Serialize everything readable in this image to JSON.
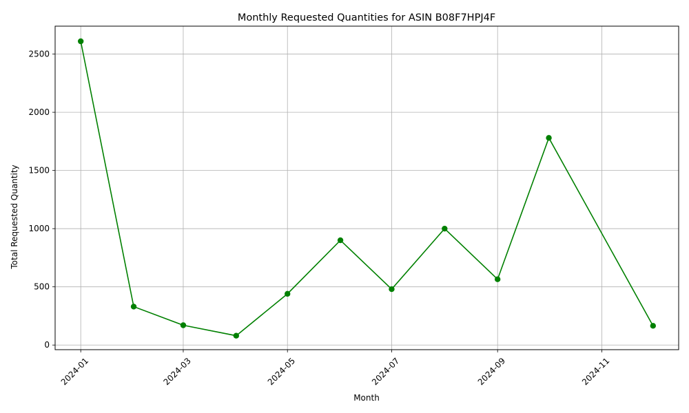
{
  "chart_data": {
    "type": "line",
    "title": "Monthly Requested Quantities for ASIN B08F7HPJ4F",
    "xlabel": "Month",
    "ylabel": "Total Requested Quantity",
    "x": [
      "2024-01-01",
      "2024-02-01",
      "2024-03-01",
      "2024-04-01",
      "2024-05-01",
      "2024-06-01",
      "2024-07-01",
      "2024-08-01",
      "2024-09-01",
      "2024-10-01",
      "2024-12-01"
    ],
    "values": [
      2610,
      330,
      170,
      80,
      440,
      900,
      480,
      1000,
      565,
      1780,
      165
    ],
    "xticks": [
      "2024-01",
      "2024-03",
      "2024-05",
      "2024-07",
      "2024-09",
      "2024-11"
    ],
    "xtick_values": [
      "2024-01-01",
      "2024-03-01",
      "2024-05-01",
      "2024-07-01",
      "2024-09-01",
      "2024-11-01"
    ],
    "yticks": [
      0,
      500,
      1000,
      1500,
      2000,
      2500
    ],
    "xlim": [
      "2023-12-17",
      "2024-12-16"
    ],
    "ylim": [
      -40,
      2740
    ],
    "grid": true,
    "color": "#008000"
  }
}
